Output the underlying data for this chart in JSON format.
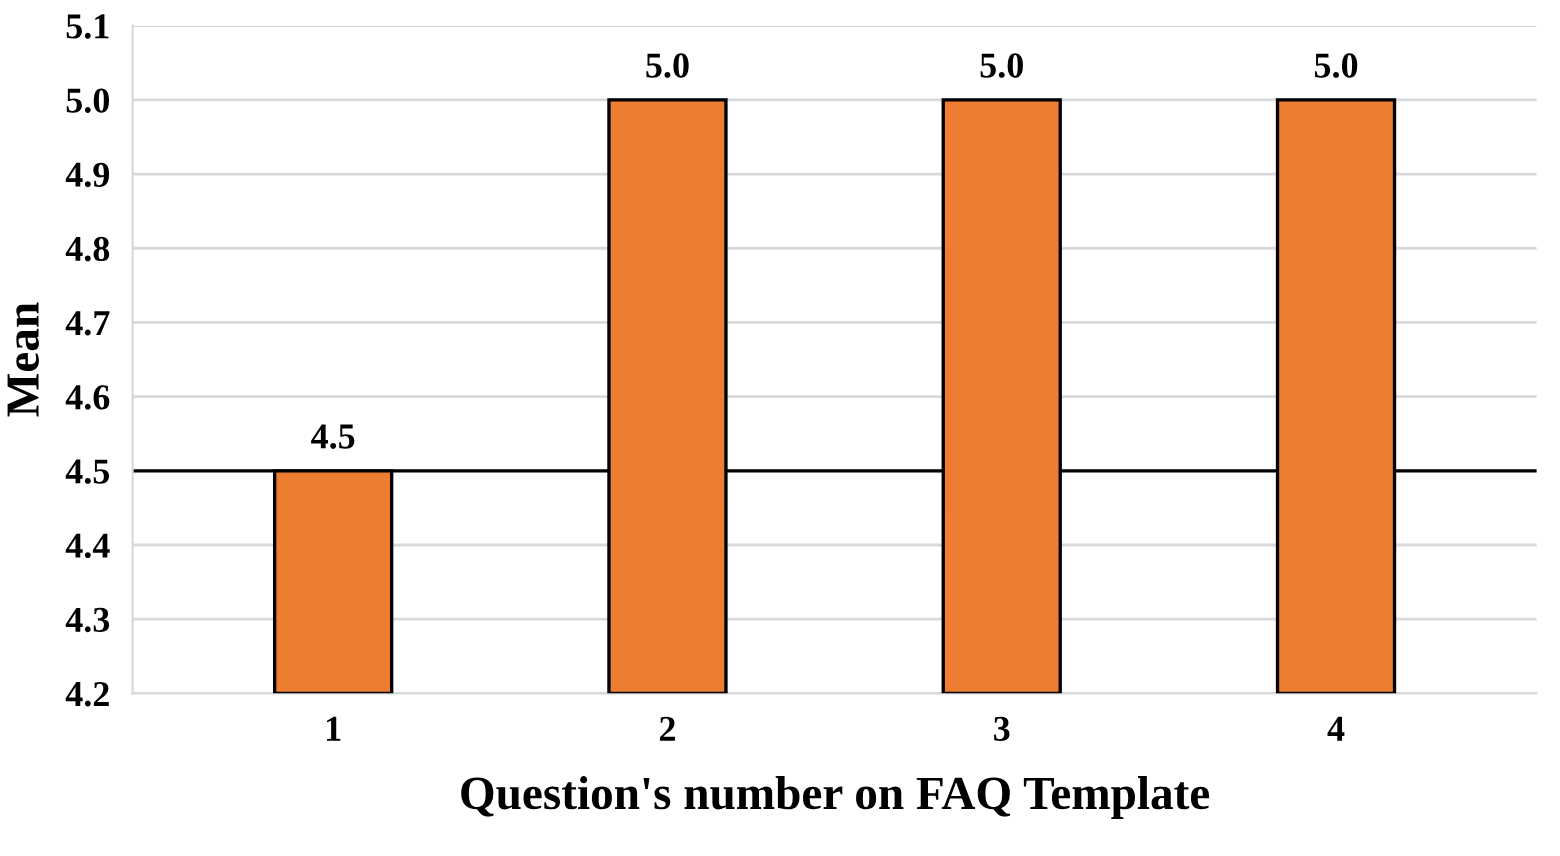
{
  "chart_data": {
    "type": "bar",
    "xlabel": "Question's number on FAQ Template",
    "ylabel": "Mean",
    "categories": [
      "1",
      "2",
      "3",
      "4"
    ],
    "values": [
      4.5,
      5.0,
      5.0,
      5.0
    ],
    "value_labels": [
      "4.5",
      "5.0",
      "5.0",
      "5.0"
    ],
    "color": "#ed7d31",
    "ylim": [
      4.2,
      5.1
    ],
    "yticks": [
      4.2,
      4.3,
      4.4,
      4.5,
      4.6,
      4.7,
      4.8,
      4.9,
      {
        "value": 5.0,
        "label": "5.0"
      },
      5.1
    ],
    "grid": "y",
    "ref_lines": [
      {
        "axis": "y",
        "value": 4.5,
        "color": "#000000"
      }
    ]
  }
}
